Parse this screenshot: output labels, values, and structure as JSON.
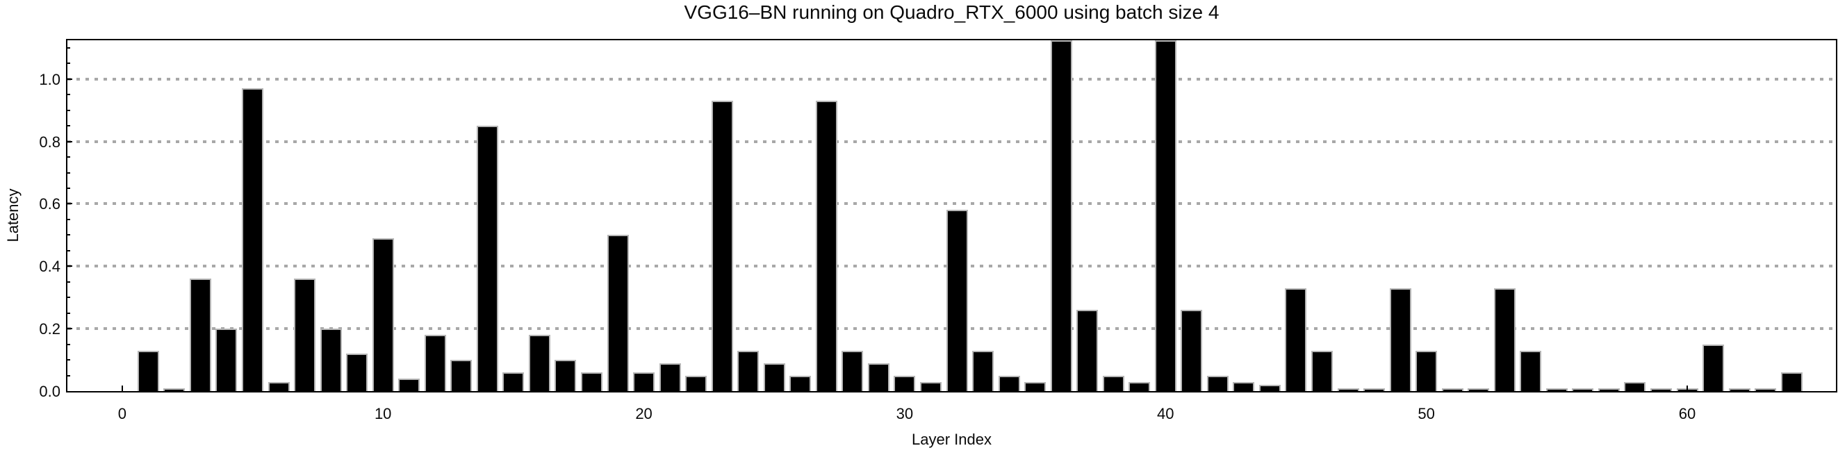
{
  "title": "VGG16–BN running on Quadro_RTX_6000 using batch size 4",
  "chart_data": {
    "type": "bar",
    "title": "VGG16–BN running on Quadro_RTX_6000 using batch size 4",
    "xlabel": "Layer Index",
    "ylabel": "Latency",
    "categories": [
      1,
      2,
      3,
      4,
      5,
      6,
      7,
      8,
      9,
      10,
      11,
      12,
      13,
      14,
      15,
      16,
      17,
      18,
      19,
      20,
      21,
      22,
      23,
      24,
      25,
      26,
      27,
      28,
      29,
      30,
      31,
      32,
      33,
      34,
      35,
      36,
      37,
      38,
      39,
      40,
      41,
      42,
      43,
      44,
      45,
      46,
      47,
      48,
      49,
      50,
      51,
      52,
      53,
      54,
      55,
      56,
      57,
      58,
      59,
      60,
      61,
      62,
      63,
      64
    ],
    "values": [
      0.13,
      0.01,
      0.36,
      0.2,
      0.97,
      0.03,
      0.36,
      0.2,
      0.12,
      0.49,
      0.04,
      0.18,
      0.1,
      0.85,
      0.06,
      0.18,
      0.1,
      0.06,
      0.5,
      0.06,
      0.09,
      0.05,
      0.93,
      0.13,
      0.09,
      0.05,
      0.93,
      0.13,
      0.09,
      0.05,
      0.03,
      0.58,
      0.13,
      0.05,
      0.03,
      1.13,
      0.26,
      0.05,
      0.03,
      1.13,
      0.26,
      0.05,
      0.03,
      0.02,
      0.33,
      0.13,
      0.01,
      0.01,
      0.33,
      0.13,
      0.01,
      0.01,
      0.33,
      0.13,
      0.01,
      0.01,
      0.01,
      0.03,
      0.01,
      0.01,
      0.15,
      0.01,
      0.01,
      0.06
    ],
    "clipped_at_top_indices": [
      36,
      40
    ],
    "x_tick_labels": [
      "0",
      "10",
      "20",
      "30",
      "40",
      "50",
      "60"
    ],
    "x_tick_values": [
      0,
      10,
      20,
      30,
      40,
      50,
      60
    ],
    "y_tick_labels": [
      "0.0",
      "0.2",
      "0.4",
      "0.6",
      "0.8",
      "1.0"
    ],
    "y_tick_values": [
      0.0,
      0.2,
      0.4,
      0.6,
      0.8,
      1.0
    ],
    "y_minor_tick_step": 0.05,
    "xlim": [
      -2.1,
      65.7
    ],
    "ylim": [
      0,
      1.124
    ],
    "grid": "horizontal dotted at y major ticks",
    "legend": "none",
    "bar_color": "#000000",
    "bar_edge_color": "#b5b5b5",
    "grid_color": "#a8a8a8",
    "axis_color": "#000000",
    "background_color": "#ffffff"
  }
}
